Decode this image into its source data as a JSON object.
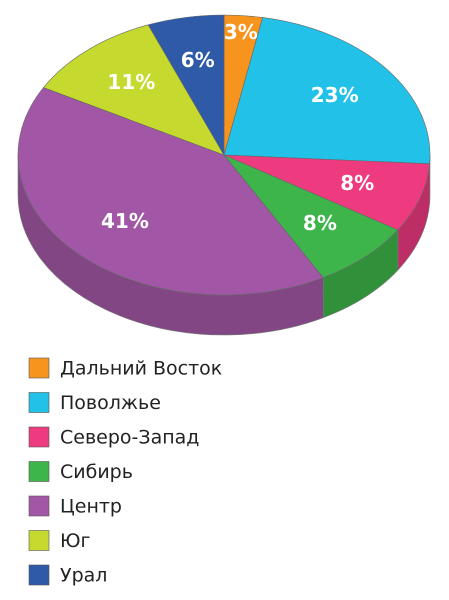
{
  "chart_data": {
    "type": "pie3d",
    "categories": [
      "Дальний Восток",
      "Поволжье",
      "Северо-Запад",
      "Сибирь",
      "Центр",
      "Юг",
      "Урал"
    ],
    "values": [
      3,
      23,
      8,
      8,
      41,
      11,
      6
    ],
    "value_labels": [
      "3%",
      "23%",
      "8%",
      "8%",
      "41%",
      "11%",
      "6%"
    ],
    "colors": [
      "#f7941d",
      "#21c1e8",
      "#ee3a7f",
      "#3db54a",
      "#a257a6",
      "#c6d92f",
      "#2e5aa8"
    ]
  }
}
